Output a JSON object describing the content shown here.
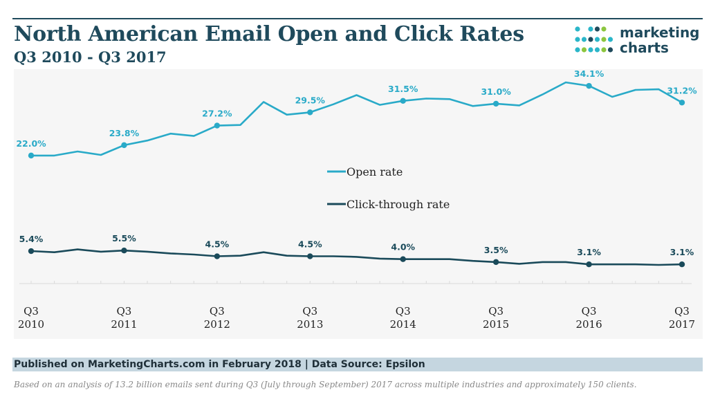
{
  "header": {
    "title": "North American Email Open and Click Rates",
    "subtitle": "Q3 2010 - Q3 2017"
  },
  "logo": {
    "line1": "marketing",
    "line2": "charts",
    "colors": [
      "#2bb6c9",
      "#1f4a5c",
      "#8cc63f"
    ]
  },
  "colors": {
    "open": "#29aac8",
    "click": "#1a4a5a",
    "text": "#1f4a5c"
  },
  "footer": {
    "published": "Published on MarketingCharts.com in February 2018 | Data Source: Epsilon",
    "note": "Based on an analysis of 13.2 billion emails sent during Q3 (July through September) 2017 across multiple industries and approximately 150 clients."
  },
  "chart_data": {
    "type": "line",
    "title": "North American Email Open and Click Rates",
    "subtitle": "Q3 2010 - Q3 2017",
    "x": [
      "Q3 2010",
      "Q4 2010",
      "Q1 2011",
      "Q2 2011",
      "Q3 2011",
      "Q4 2011",
      "Q1 2012",
      "Q2 2012",
      "Q3 2012",
      "Q4 2012",
      "Q1 2013",
      "Q2 2013",
      "Q3 2013",
      "Q4 2013",
      "Q1 2014",
      "Q2 2014",
      "Q3 2014",
      "Q4 2014",
      "Q1 2015",
      "Q2 2015",
      "Q3 2015",
      "Q4 2015",
      "Q1 2016",
      "Q2 2016",
      "Q3 2016",
      "Q4 2016",
      "Q1 2017",
      "Q2 2017",
      "Q3 2017"
    ],
    "tick_labels": [
      {
        "index": 0,
        "line1": "Q3",
        "line2": "2010"
      },
      {
        "index": 4,
        "line1": "Q3",
        "line2": "2011"
      },
      {
        "index": 8,
        "line1": "Q3",
        "line2": "2012"
      },
      {
        "index": 12,
        "line1": "Q3",
        "line2": "2013"
      },
      {
        "index": 16,
        "line1": "Q3",
        "line2": "2014"
      },
      {
        "index": 20,
        "line1": "Q3",
        "line2": "2015"
      },
      {
        "index": 24,
        "line1": "Q3",
        "line2": "2016"
      },
      {
        "index": 28,
        "line1": "Q3",
        "line2": "2017"
      }
    ],
    "series": [
      {
        "name": "Open rate",
        "color": "#29aac8",
        "values": [
          22.0,
          22.0,
          22.7,
          22.1,
          23.8,
          24.6,
          25.8,
          25.4,
          27.2,
          27.3,
          31.3,
          29.1,
          29.5,
          30.9,
          32.5,
          30.8,
          31.5,
          31.9,
          31.8,
          30.6,
          31.0,
          30.7,
          32.6,
          34.7,
          34.1,
          32.2,
          33.4,
          33.5,
          31.2
        ],
        "labels": [
          {
            "index": 0,
            "text": "22.0%"
          },
          {
            "index": 4,
            "text": "23.8%"
          },
          {
            "index": 8,
            "text": "27.2%"
          },
          {
            "index": 12,
            "text": "29.5%"
          },
          {
            "index": 16,
            "text": "31.5%"
          },
          {
            "index": 20,
            "text": "31.0%"
          },
          {
            "index": 24,
            "text": "34.1%"
          },
          {
            "index": 28,
            "text": "31.2%"
          }
        ]
      },
      {
        "name": "Click-through rate",
        "color": "#1a4a5a",
        "values": [
          5.4,
          5.2,
          5.7,
          5.3,
          5.5,
          5.3,
          5.0,
          4.8,
          4.5,
          4.6,
          5.2,
          4.6,
          4.5,
          4.5,
          4.4,
          4.1,
          4.0,
          4.0,
          4.0,
          3.7,
          3.5,
          3.2,
          3.5,
          3.5,
          3.1,
          3.1,
          3.1,
          3.0,
          3.1
        ],
        "labels": [
          {
            "index": 0,
            "text": "5.4%"
          },
          {
            "index": 4,
            "text": "5.5%"
          },
          {
            "index": 8,
            "text": "4.5%"
          },
          {
            "index": 12,
            "text": "4.5%"
          },
          {
            "index": 16,
            "text": "4.0%"
          },
          {
            "index": 20,
            "text": "3.5%"
          },
          {
            "index": 24,
            "text": "3.1%"
          },
          {
            "index": 28,
            "text": "3.1%"
          }
        ]
      }
    ],
    "ylim": [
      0,
      37
    ],
    "grid": false,
    "legend": "center"
  }
}
